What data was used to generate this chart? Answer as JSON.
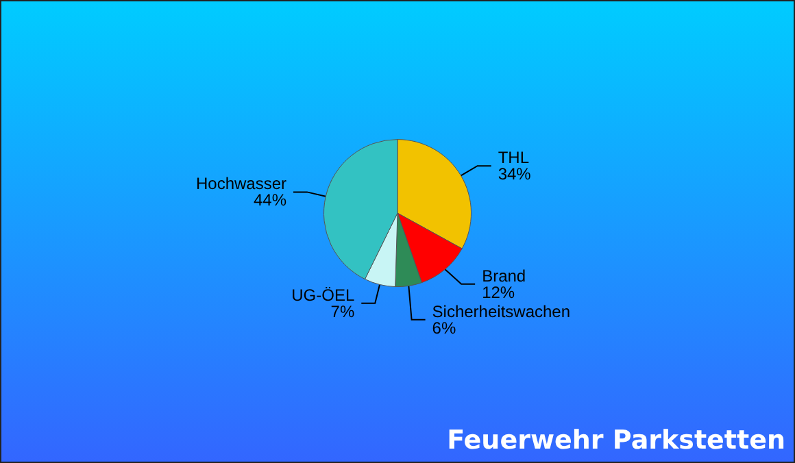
{
  "chart_data": {
    "type": "pie",
    "categories": [
      "THL",
      "Brand",
      "Sicherheitswachen",
      "UG-ÖEL",
      "Hochwasser"
    ],
    "values": [
      34,
      12,
      6,
      7,
      44
    ],
    "value_labels": [
      "34%",
      "12%",
      "6%",
      "7%",
      "44%"
    ],
    "colors": [
      "#f2c200",
      "#ff0000",
      "#2e8b57",
      "#c8f5f5",
      "#33c2c2"
    ],
    "annotations": [
      "Feuerwehr Parkstetten"
    ]
  }
}
